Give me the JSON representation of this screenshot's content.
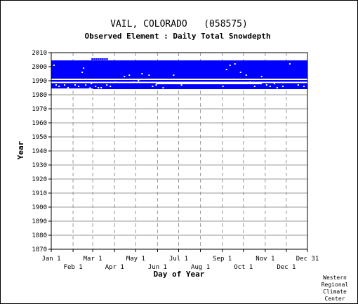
{
  "page": {
    "credit_lines": [
      "Western",
      "Regional",
      "Climate",
      "Center"
    ]
  },
  "chart_data": {
    "type": "scatter",
    "title": "VAIL, COLORADO   (058575)",
    "subtitle": "Observed Element : Daily Total Snowdepth",
    "xlabel": "Day of Year",
    "ylabel": "Year",
    "ylim": [
      1870,
      2010
    ],
    "y_ticks": [
      2010,
      2000,
      1990,
      1980,
      1970,
      1960,
      1950,
      1940,
      1930,
      1920,
      1910,
      1900,
      1890,
      1880,
      1870
    ],
    "x_ticks_top": [
      {
        "label": "Jan 1",
        "day": 1
      },
      {
        "label": "Mar 1",
        "day": 60
      },
      {
        "label": "May 1",
        "day": 121
      },
      {
        "label": "Jul 1",
        "day": 182
      },
      {
        "label": "Sep 1",
        "day": 244
      },
      {
        "label": "Nov 1",
        "day": 305
      },
      {
        "label": "Dec 31",
        "day": 365
      }
    ],
    "x_ticks_bottom": [
      {
        "label": "Feb 1",
        "day": 32
      },
      {
        "label": "Apr 1",
        "day": 91
      },
      {
        "label": "Jun 1",
        "day": 152
      },
      {
        "label": "Aug 1",
        "day": 213
      },
      {
        "label": "Oct 1",
        "day": 274
      },
      {
        "label": "Dec 1",
        "day": 335
      }
    ],
    "xlim": [
      1,
      365
    ],
    "grid": true,
    "colors": {
      "data": "#0000ff",
      "grid": "#999999",
      "frame": "#000000"
    },
    "coverage": [
      {
        "day_start": 1,
        "day_end": 365,
        "year_start": 1984.5,
        "year_end": 2004.5
      },
      {
        "day_start": 60,
        "day_end": 365,
        "year_start": 1984,
        "year_end": 1984.6
      }
    ],
    "missing_rows": [
      {
        "day_start": 1,
        "day_end": 365,
        "year": 1991.0
      },
      {
        "day_start": 1,
        "day_end": 365,
        "year": 1988.8
      },
      {
        "day_start": 150,
        "day_end": 300,
        "year": 1988.0
      }
    ],
    "missing_points": [
      [
        5,
        2001
      ],
      [
        8,
        1987
      ],
      [
        12,
        1986
      ],
      [
        20,
        1987
      ],
      [
        25,
        1985
      ],
      [
        35,
        1987
      ],
      [
        40,
        1986
      ],
      [
        45,
        1996
      ],
      [
        47,
        1999
      ],
      [
        50,
        1987
      ],
      [
        56,
        1985
      ],
      [
        58,
        1988
      ],
      [
        64,
        1986
      ],
      [
        68,
        1985
      ],
      [
        72,
        1985
      ],
      [
        80,
        1987
      ],
      [
        85,
        1986
      ],
      [
        92,
        1989
      ],
      [
        100,
        1991
      ],
      [
        105,
        1993
      ],
      [
        112,
        1994
      ],
      [
        118,
        1989
      ],
      [
        125,
        1990
      ],
      [
        130,
        1995
      ],
      [
        140,
        1994
      ],
      [
        145,
        1986
      ],
      [
        150,
        1987
      ],
      [
        160,
        1985
      ],
      [
        175,
        1994
      ],
      [
        186,
        1987
      ],
      [
        245,
        1986
      ],
      [
        250,
        1998
      ],
      [
        255,
        2001
      ],
      [
        262,
        2002
      ],
      [
        270,
        1996
      ],
      [
        278,
        1994
      ],
      [
        284,
        1989
      ],
      [
        290,
        1986
      ],
      [
        300,
        1993
      ],
      [
        307,
        1987
      ],
      [
        312,
        1986
      ],
      [
        318,
        1988
      ],
      [
        322,
        1985
      ],
      [
        330,
        1986
      ],
      [
        340,
        2002
      ],
      [
        352,
        1987
      ],
      [
        360,
        1986
      ]
    ],
    "extra_points": [
      [
        55,
        1986
      ],
      [
        59,
        2005.5
      ],
      [
        62,
        2005.5
      ],
      [
        65,
        2005.5
      ],
      [
        68,
        2005.5
      ],
      [
        71,
        2005.5
      ],
      [
        74,
        2005.5
      ],
      [
        77,
        2005.5
      ],
      [
        80,
        2005.5
      ]
    ]
  }
}
